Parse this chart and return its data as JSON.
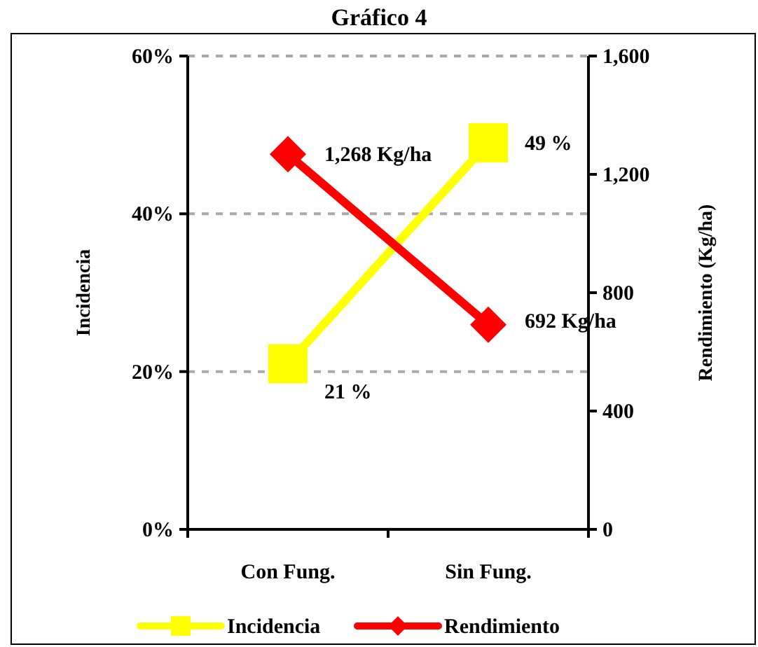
{
  "chart_data": {
    "type": "line",
    "title": "Gráfico 4",
    "ylabel": "Incidencia",
    "y2label": "Rendimiento (Kg/ha)",
    "categories": [
      "Con Fung.",
      "Sin Fung."
    ],
    "series": [
      {
        "name": "Incidencia",
        "color": "#ffff00",
        "values": [
          21,
          49
        ],
        "marker": "square",
        "value_labels": [
          "21 %",
          "49 %"
        ]
      },
      {
        "name": "Rendimiento",
        "color": "#ff0000",
        "values": [
          1268,
          692
        ],
        "marker": "diamond",
        "axis": "y2",
        "value_labels": [
          "1,268 Kg/ha",
          "692 Kg/ha"
        ]
      }
    ],
    "ylim": [
      0,
      60
    ],
    "yticks": [
      {
        "value": 0,
        "label": "0%"
      },
      {
        "value": 20,
        "label": "20%"
      },
      {
        "value": 40,
        "label": "40%"
      },
      {
        "value": 60,
        "label": "60%"
      }
    ],
    "y2lim": [
      0,
      1600
    ],
    "y2ticks": [
      {
        "value": 0,
        "label": "0"
      },
      {
        "value": 400,
        "label": "400"
      },
      {
        "value": 800,
        "label": "800"
      },
      {
        "value": 1200,
        "label": "1,200"
      },
      {
        "value": 1600,
        "label": "1,600"
      }
    ],
    "grid": "y",
    "legend": "bottom",
    "line_style": "solid"
  }
}
